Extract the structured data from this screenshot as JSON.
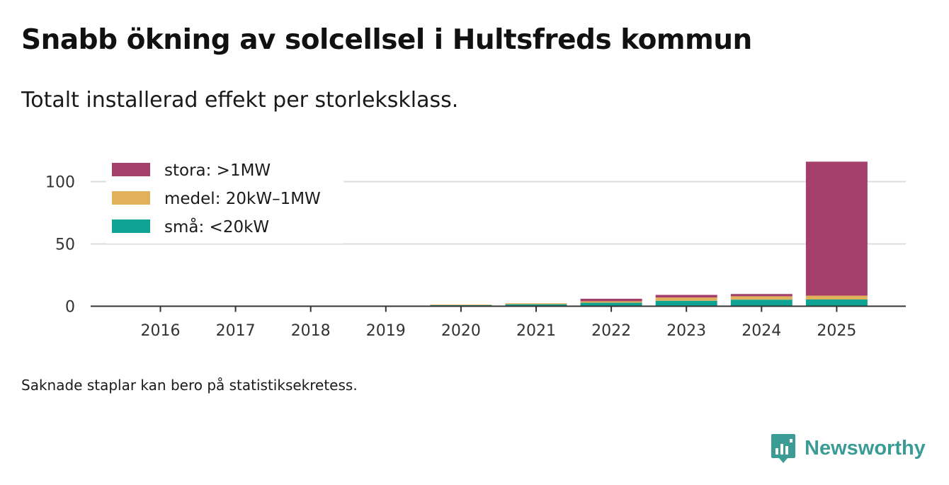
{
  "title": "Snabb ökning av solcellsel i Hultsfreds kommun",
  "subtitle": "Totalt installerad effekt per storleksklass.",
  "footnote": "Saknade staplar kan bero på statistiksekretess.",
  "brand": {
    "name": "Newsworthy",
    "icon": "newsworthy-logo-icon",
    "color": "#3a9c95"
  },
  "chart_data": {
    "type": "bar",
    "stacked": true,
    "categories": [
      "2016",
      "2017",
      "2018",
      "2019",
      "2020",
      "2021",
      "2022",
      "2023",
      "2024",
      "2025"
    ],
    "series": [
      {
        "name": "små: <20kW",
        "color": "#0fa393",
        "values": [
          0.1,
          0.2,
          0.3,
          0.4,
          1.1,
          1.6,
          2.8,
          4.4,
          5.3,
          5.4
        ]
      },
      {
        "name": "medel: 20kW–1MW",
        "color": "#e0b05a",
        "values": [
          0,
          0,
          0,
          0,
          0.2,
          0.8,
          1.2,
          2.6,
          2.7,
          3.1
        ]
      },
      {
        "name": "stora: >1MW",
        "color": "#a53e6a",
        "values": [
          0,
          0,
          0,
          0,
          0,
          0,
          2.0,
          2.1,
          1.8,
          107.5
        ]
      }
    ],
    "legend_order": [
      "stora: >1MW",
      "medel: 20kW–1MW",
      "små: <20kW"
    ],
    "legend_position": "top-left",
    "yticks": [
      0,
      50,
      100
    ],
    "ylim": [
      0,
      120
    ],
    "xlabel": "",
    "ylabel": "",
    "grid": true
  }
}
